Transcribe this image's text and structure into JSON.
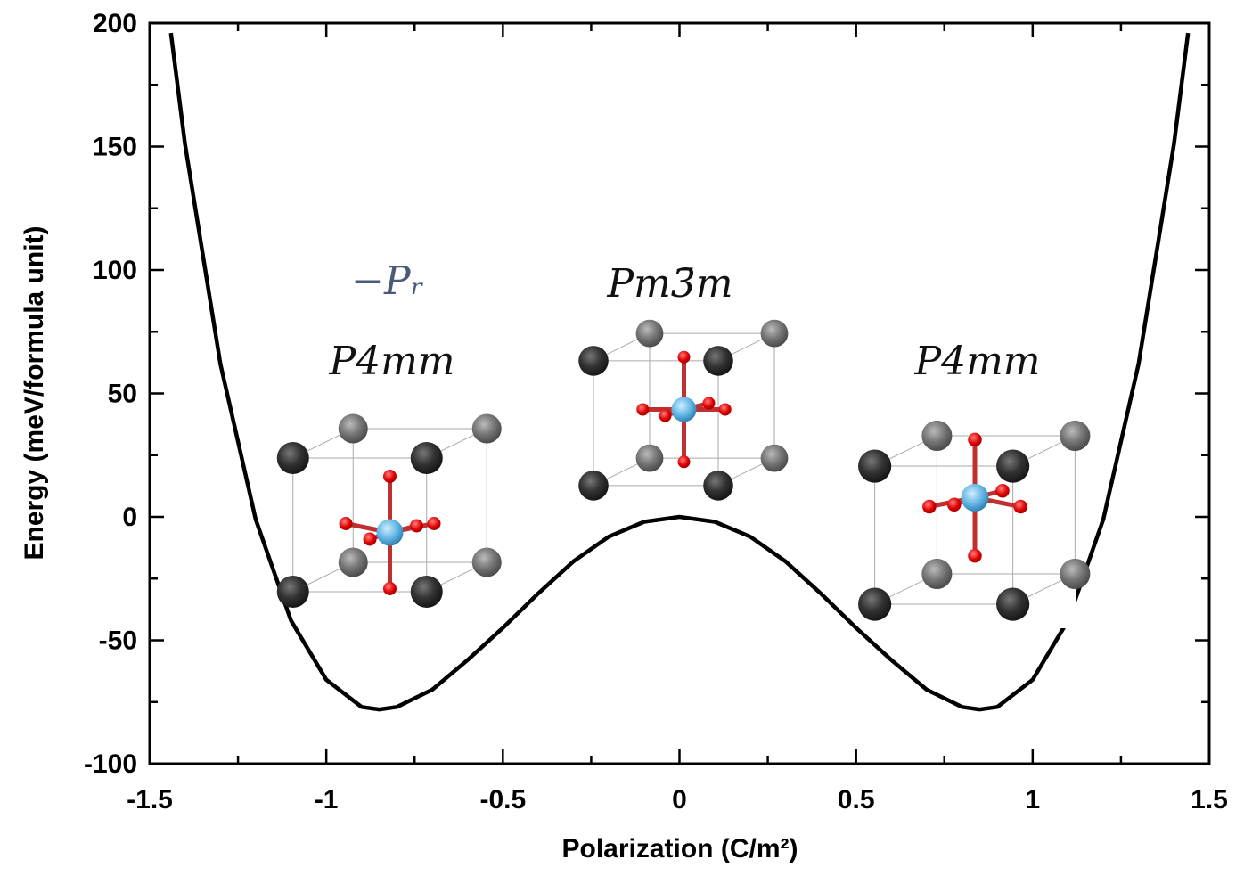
{
  "chart_data": {
    "type": "line",
    "xlabel": "Polarization (C/m²)",
    "ylabel": "Energy (meV/formula unit)",
    "x": [
      -1.44,
      -1.4,
      -1.3,
      -1.2,
      -1.1,
      -1.0,
      -0.9,
      -0.85,
      -0.8,
      -0.7,
      -0.6,
      -0.5,
      -0.4,
      -0.3,
      -0.2,
      -0.1,
      0,
      0.1,
      0.2,
      0.3,
      0.4,
      0.5,
      0.6,
      0.7,
      0.8,
      0.85,
      0.9,
      1.0,
      1.1,
      1.2,
      1.3,
      1.4,
      1.44
    ],
    "series": [
      {
        "color": "#000000",
        "values": [
          196,
          151,
          62,
          -1,
          -42,
          -66,
          -77,
          -78,
          -77,
          -70,
          -58,
          -45,
          -31,
          -18,
          -8,
          -2,
          0,
          -2,
          -8,
          -18,
          -31,
          -45,
          -58,
          -70,
          -77,
          -78,
          -77,
          -66,
          -42,
          -1,
          62,
          151,
          196
        ]
      }
    ],
    "xlim": [
      -1.5,
      1.5
    ],
    "ylim": [
      -100,
      200
    ],
    "xticks": [
      -1.5,
      -1,
      -0.5,
      0,
      0.5,
      1,
      1.5
    ],
    "yticks": [
      -100,
      -50,
      0,
      50,
      100,
      150,
      200
    ],
    "annotations": [
      "−Pᵣ",
      "Pm3̄m",
      "P4mm",
      "P4mm"
    ]
  }
}
